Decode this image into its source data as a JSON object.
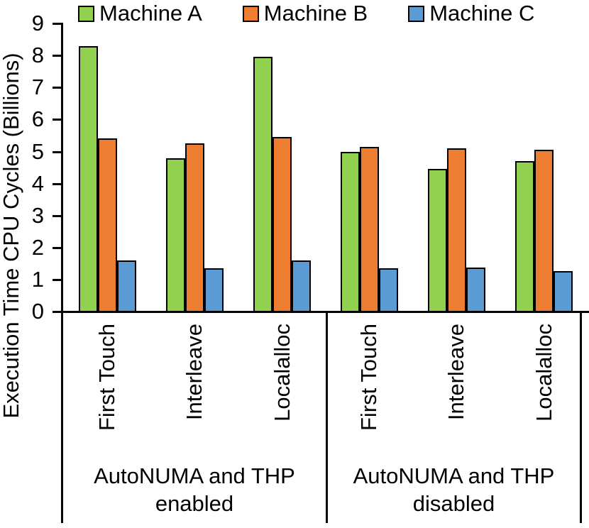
{
  "chart_data": {
    "type": "bar",
    "title": "",
    "ylabel": "Execution Time CPU Cycles (Billions)",
    "xlabel": "",
    "ylim": [
      0,
      9
    ],
    "yticks": [
      0,
      1,
      2,
      3,
      4,
      5,
      6,
      7,
      8,
      9
    ],
    "grid": false,
    "legend_position": "top",
    "categories": [
      "First Touch",
      "Interleave",
      "Localalloc",
      "First Touch",
      "Interleave",
      "Localalloc"
    ],
    "groups": [
      {
        "label": "AutoNUMA and THP enabled",
        "category_indexes": [
          0,
          1,
          2
        ]
      },
      {
        "label": "AutoNUMA and THP disabled",
        "category_indexes": [
          3,
          4,
          5
        ]
      }
    ],
    "series": [
      {
        "name": "Machine A",
        "color": "#92D050",
        "values": [
          8.3,
          4.8,
          7.95,
          5.0,
          4.45,
          4.7
        ]
      },
      {
        "name": "Machine B",
        "color": "#ED7D31",
        "values": [
          5.4,
          5.25,
          5.45,
          5.15,
          5.1,
          5.05
        ]
      },
      {
        "name": "Machine C",
        "color": "#5B9BD5",
        "values": [
          1.6,
          1.35,
          1.6,
          1.35,
          1.38,
          1.27
        ]
      }
    ],
    "bar_border_color": "#000000",
    "axis_color": "#000000",
    "text_color": "#000000"
  }
}
